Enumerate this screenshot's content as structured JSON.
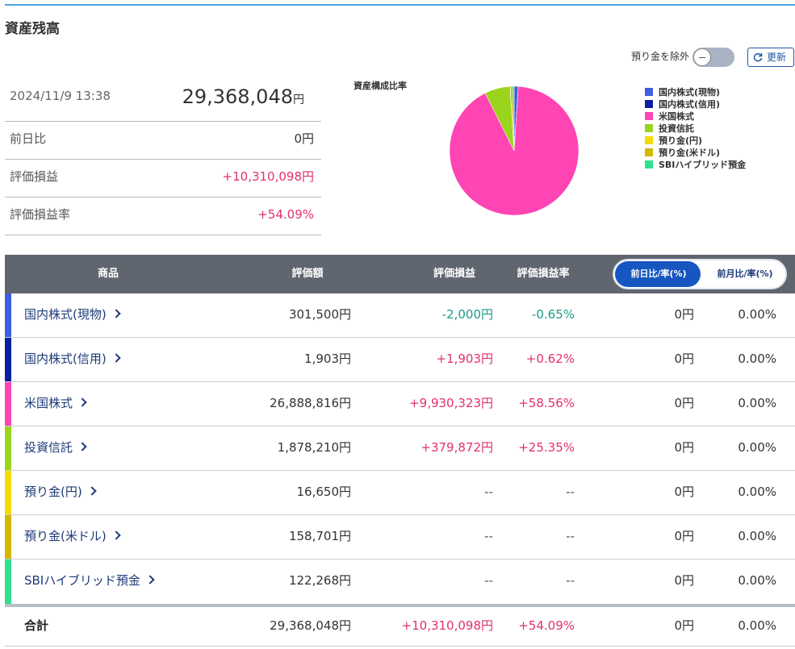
{
  "header": {
    "title": "資産残高",
    "toggle_label": "預り金を除外",
    "refresh_button": "更新"
  },
  "summary": {
    "timestamp": "2024/11/9 13:38",
    "total": "29,368,048",
    "total_unit": "円",
    "rows": [
      [
        "前日比",
        "0円"
      ],
      [
        "評価損益",
        "+10,310,098円"
      ],
      [
        "評価損益率",
        "+54.09%"
      ]
    ]
  },
  "chart_data": {
    "type": "pie",
    "title": "資産構成比率",
    "categories": [
      "国内株式(現物)",
      "国内株式(信用)",
      "米国株式",
      "投資信託",
      "預り金(円)",
      "預り金(米ドル)",
      "SBIハイブリッド預金"
    ],
    "values": [
      1.03,
      0.01,
      91.56,
      6.4,
      0.06,
      0.54,
      0.42
    ],
    "colors": [
      "#3d5fe0",
      "#0b1fa0",
      "#ff44b4",
      "#9ad41c",
      "#f5dc00",
      "#d2b800",
      "#2fe08e"
    ]
  },
  "table": {
    "columns": [
      "商品",
      "評価額",
      "評価損益",
      "評価損益率"
    ],
    "period_tabs": [
      "前日比/率(%)",
      "前月比/率(%)"
    ],
    "rows": [
      [
        "国内株式(現物)",
        "301,500円",
        "-2,000円",
        "-0.65%",
        "0円",
        "0.00%"
      ],
      [
        "国内株式(信用)",
        "1,903円",
        "+1,903円",
        "+0.62%",
        "0円",
        "0.00%"
      ],
      [
        "米国株式",
        "26,888,816円",
        "+9,930,323円",
        "+58.56%",
        "0円",
        "0.00%"
      ],
      [
        "投資信託",
        "1,878,210円",
        "+379,872円",
        "+25.35%",
        "0円",
        "0.00%"
      ],
      [
        "預り金(円)",
        "16,650円",
        "--",
        "--",
        "0円",
        "0.00%"
      ],
      [
        "預り金(米ドル)",
        "158,701円",
        "--",
        "--",
        "0円",
        "0.00%"
      ],
      [
        "SBIハイブリッド預金",
        "122,268円",
        "--",
        "--",
        "0円",
        "0.00%"
      ]
    ],
    "total": [
      "合計",
      "29,368,048円",
      "+10,310,098円",
      "+54.09%",
      "0円",
      "0.00%"
    ]
  }
}
